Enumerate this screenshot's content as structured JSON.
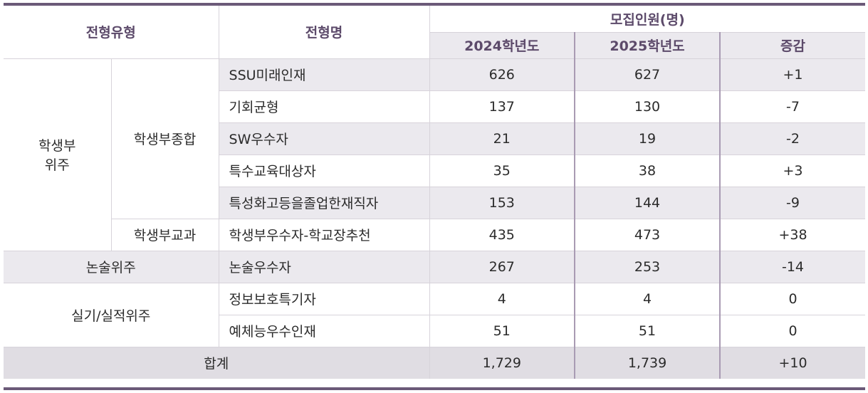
{
  "headers": {
    "type": "전형유형",
    "name": "전형명",
    "recruit": "모집인원(명)",
    "y2024": "2024학년도",
    "y2025": "2025학년도",
    "change": "증감"
  },
  "groups": {
    "school_record": "학생부\n위주",
    "comprehensive": "학생부종합",
    "subject": "학생부교과",
    "essay": "논술위주",
    "practical": "실기/실적위주"
  },
  "rows": [
    {
      "name": "SSU미래인재",
      "y2024": "626",
      "y2025": "627",
      "change": "+1"
    },
    {
      "name": "기회균형",
      "y2024": "137",
      "y2025": "130",
      "change": "-7"
    },
    {
      "name": "SW우수자",
      "y2024": "21",
      "y2025": "19",
      "change": "-2"
    },
    {
      "name": "특수교육대상자",
      "y2024": "35",
      "y2025": "38",
      "change": "+3"
    },
    {
      "name": "특성화고등을졸업한재직자",
      "y2024": "153",
      "y2025": "144",
      "change": "-9"
    },
    {
      "name": "학생부우수자-학교장추천",
      "y2024": "435",
      "y2025": "473",
      "change": "+38"
    },
    {
      "name": "논술우수자",
      "y2024": "267",
      "y2025": "253",
      "change": "-14"
    },
    {
      "name": "정보보호특기자",
      "y2024": "4",
      "y2025": "4",
      "change": "0"
    },
    {
      "name": "예체능우수인재",
      "y2024": "51",
      "y2025": "51",
      "change": "0"
    }
  ],
  "total": {
    "label": "합계",
    "y2024": "1,729",
    "y2025": "1,739",
    "change": "+10"
  }
}
